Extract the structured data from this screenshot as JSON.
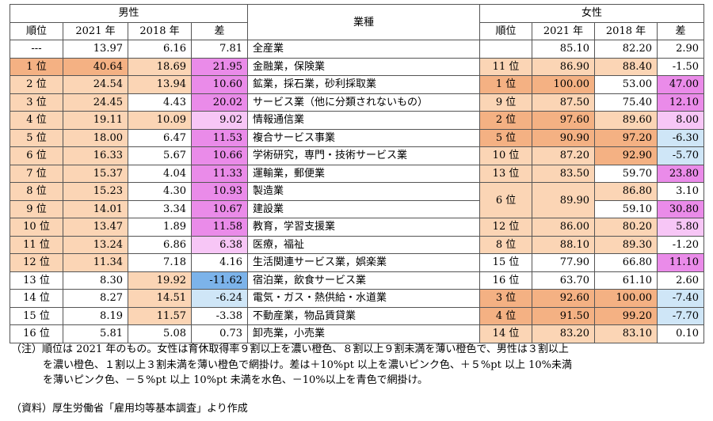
{
  "header": {
    "male": "男性",
    "female": "女性",
    "industry": "業種",
    "rank": "順位",
    "y2021": "2021 年",
    "y2018": "2018 年",
    "diff": "差"
  },
  "rows": [
    {
      "m_rank": "---",
      "m_2021": "13.97",
      "m_2018": "6.16",
      "m_diff": "7.81",
      "industry": "全産業",
      "f_rank": "",
      "f_2021": "85.10",
      "f_2018": "82.20",
      "f_diff": "2.90"
    },
    {
      "m_rank": "1 位",
      "m_2021": "40.64",
      "m_2018": "18.69",
      "m_diff": "21.95",
      "industry": "金融業，保険業",
      "f_rank": "11 位",
      "f_2021": "86.90",
      "f_2018": "88.40",
      "f_diff": "-1.50"
    },
    {
      "m_rank": "2 位",
      "m_2021": "24.54",
      "m_2018": "13.94",
      "m_diff": "10.60",
      "industry": "鉱業，採石業，砂利採取業",
      "f_rank": "1 位",
      "f_2021": "100.00",
      "f_2018": "53.00",
      "f_diff": "47.00"
    },
    {
      "m_rank": "3 位",
      "m_2021": "24.45",
      "m_2018": "4.43",
      "m_diff": "20.02",
      "industry": "サービス業（他に分類されないもの）",
      "f_rank": "9 位",
      "f_2021": "87.50",
      "f_2018": "75.40",
      "f_diff": "12.10"
    },
    {
      "m_rank": "4 位",
      "m_2021": "19.11",
      "m_2018": "10.09",
      "m_diff": "9.02",
      "industry": "情報通信業",
      "f_rank": "2 位",
      "f_2021": "97.60",
      "f_2018": "89.60",
      "f_diff": "8.00"
    },
    {
      "m_rank": "5 位",
      "m_2021": "18.00",
      "m_2018": "6.47",
      "m_diff": "11.53",
      "industry": "複合サービス事業",
      "f_rank": "5 位",
      "f_2021": "90.90",
      "f_2018": "97.20",
      "f_diff": "-6.30"
    },
    {
      "m_rank": "6 位",
      "m_2021": "16.33",
      "m_2018": "5.67",
      "m_diff": "10.66",
      "industry": "学術研究，専門・技術サービス業",
      "f_rank": "10 位",
      "f_2021": "87.20",
      "f_2018": "92.90",
      "f_diff": "-5.70"
    },
    {
      "m_rank": "7 位",
      "m_2021": "15.37",
      "m_2018": "4.04",
      "m_diff": "11.33",
      "industry": "運輸業，郵便業",
      "f_rank": "13 位",
      "f_2021": "83.50",
      "f_2018": "59.70",
      "f_diff": "23.80"
    },
    {
      "m_rank": "8 位",
      "m_2021": "15.23",
      "m_2018": "4.30",
      "m_diff": "10.93",
      "industry": "製造業",
      "f_rank": "6 位",
      "f_2021": "89.90",
      "f_2018": "86.80",
      "f_diff": "3.10"
    },
    {
      "m_rank": "9 位",
      "m_2021": "14.01",
      "m_2018": "3.34",
      "m_diff": "10.67",
      "industry": "建設業",
      "f_rank": "",
      "f_2021": "",
      "f_2018": "59.10",
      "f_diff": "30.80"
    },
    {
      "m_rank": "10 位",
      "m_2021": "13.47",
      "m_2018": "1.89",
      "m_diff": "11.58",
      "industry": "教育，学習支援業",
      "f_rank": "12 位",
      "f_2021": "86.00",
      "f_2018": "80.20",
      "f_diff": "5.80"
    },
    {
      "m_rank": "11 位",
      "m_2021": "13.24",
      "m_2018": "6.86",
      "m_diff": "6.38",
      "industry": "医療，福祉",
      "f_rank": "8 位",
      "f_2021": "88.10",
      "f_2018": "89.30",
      "f_diff": "-1.20"
    },
    {
      "m_rank": "12 位",
      "m_2021": "11.34",
      "m_2018": "7.18",
      "m_diff": "4.16",
      "industry": "生活関連サービス業，娯楽業",
      "f_rank": "15 位",
      "f_2021": "77.90",
      "f_2018": "66.80",
      "f_diff": "11.10"
    },
    {
      "m_rank": "13 位",
      "m_2021": "8.30",
      "m_2018": "19.92",
      "m_diff": "-11.62",
      "industry": "宿泊業，飲食サービス業",
      "f_rank": "16 位",
      "f_2021": "63.70",
      "f_2018": "61.10",
      "f_diff": "2.60"
    },
    {
      "m_rank": "14 位",
      "m_2021": "8.27",
      "m_2018": "14.51",
      "m_diff": "-6.24",
      "industry": "電気・ガス・熱供給・水道業",
      "f_rank": "3 位",
      "f_2021": "92.60",
      "f_2018": "100.00",
      "f_diff": "-7.40"
    },
    {
      "m_rank": "15 位",
      "m_2021": "8.19",
      "m_2018": "11.57",
      "m_diff": "-3.38",
      "industry": "不動産業，物品賃貸業",
      "f_rank": "4 位",
      "f_2021": "91.50",
      "f_2018": "99.20",
      "f_diff": "-7.70"
    },
    {
      "m_rank": "16 位",
      "m_2021": "5.81",
      "m_2018": "5.08",
      "m_diff": "0.73",
      "industry": "卸売業，小売業",
      "f_rank": "14 位",
      "f_2021": "83.20",
      "f_2018": "83.10",
      "f_diff": "0.10"
    }
  ],
  "notes": {
    "line1": "（注）順位は 2021 年のもの。女性は育休取得率９割以上を濃い橙色、８割以上９割未満を薄い橙色で、男性は３割以上",
    "line2": "を濃い橙色、１割以上３割未満を薄い橙色で網掛け。差は＋10%pt 以上を濃いピンク色、＋５%pt 以上 10%未満",
    "line3": "を薄いピンク色、－５%pt 以上 10%pt 未満を水色、－10%以上を青色で網掛け。",
    "source": "（資料）厚生労働省「雇用均等基本調査」より作成"
  },
  "colors": {
    "orange": "#f4b183",
    "light_orange": "#fbd5b5",
    "pink": "#ea8be9",
    "light_pink": "#f7c6f6",
    "light_blue": "#cfe6f7",
    "blue": "#7cb3ea"
  }
}
